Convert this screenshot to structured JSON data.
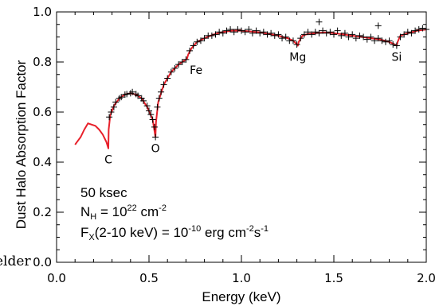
{
  "chart_data": {
    "type": "line",
    "title": "",
    "xlabel": "Energy (keV)",
    "ylabel": "Dust Halo Absorption Factor",
    "xlim": [
      0,
      2
    ],
    "ylim": [
      0,
      1
    ],
    "x_ticks": [
      0,
      0.5,
      1,
      1.5,
      2
    ],
    "y_ticks": [
      0,
      0.2,
      0.4,
      0.6,
      0.8,
      1
    ],
    "x_tick_labels": [
      "0.0",
      "0.5",
      "1.0",
      "1.5",
      "2.0"
    ],
    "y_tick_labels": [
      "0.0",
      "0.2",
      "0.4",
      "0.6",
      "0.8",
      "1.0"
    ],
    "grid": false,
    "colors": {
      "model": "#e8202a",
      "data": "#000000",
      "axes": "#000000"
    },
    "series": [
      {
        "style": "line",
        "points": [
          [
            0.1,
            0.47
          ],
          [
            0.11,
            0.48
          ],
          [
            0.13,
            0.5
          ],
          [
            0.15,
            0.53
          ],
          [
            0.17,
            0.555
          ],
          [
            0.19,
            0.55
          ],
          [
            0.21,
            0.545
          ],
          [
            0.23,
            0.53
          ],
          [
            0.25,
            0.51
          ],
          [
            0.27,
            0.48
          ],
          [
            0.28,
            0.455
          ],
          [
            0.282,
            0.53
          ],
          [
            0.29,
            0.585
          ],
          [
            0.31,
            0.625
          ],
          [
            0.34,
            0.655
          ],
          [
            0.37,
            0.67
          ],
          [
            0.4,
            0.675
          ],
          [
            0.43,
            0.67
          ],
          [
            0.46,
            0.655
          ],
          [
            0.49,
            0.62
          ],
          [
            0.52,
            0.57
          ],
          [
            0.535,
            0.5
          ],
          [
            0.538,
            0.56
          ],
          [
            0.55,
            0.64
          ],
          [
            0.58,
            0.71
          ],
          [
            0.62,
            0.76
          ],
          [
            0.66,
            0.79
          ],
          [
            0.69,
            0.805
          ],
          [
            0.705,
            0.812
          ],
          [
            0.712,
            0.83
          ],
          [
            0.73,
            0.855
          ],
          [
            0.76,
            0.88
          ],
          [
            0.8,
            0.895
          ],
          [
            0.85,
            0.91
          ],
          [
            0.9,
            0.92
          ],
          [
            0.95,
            0.925
          ],
          [
            1.0,
            0.925
          ],
          [
            1.05,
            0.922
          ],
          [
            1.1,
            0.918
          ],
          [
            1.15,
            0.912
          ],
          [
            1.2,
            0.905
          ],
          [
            1.25,
            0.895
          ],
          [
            1.28,
            0.885
          ],
          [
            1.3,
            0.87
          ],
          [
            1.305,
            0.865
          ],
          [
            1.31,
            0.88
          ],
          [
            1.33,
            0.905
          ],
          [
            1.36,
            0.912
          ],
          [
            1.4,
            0.915
          ],
          [
            1.45,
            0.918
          ],
          [
            1.5,
            0.915
          ],
          [
            1.55,
            0.91
          ],
          [
            1.6,
            0.905
          ],
          [
            1.65,
            0.9
          ],
          [
            1.7,
            0.895
          ],
          [
            1.75,
            0.89
          ],
          [
            1.8,
            0.88
          ],
          [
            1.83,
            0.87
          ],
          [
            1.84,
            0.865
          ],
          [
            1.845,
            0.88
          ],
          [
            1.86,
            0.905
          ],
          [
            1.9,
            0.915
          ],
          [
            1.95,
            0.925
          ],
          [
            2.0,
            0.93
          ]
        ]
      },
      {
        "style": "crosses",
        "points": [
          [
            0.285,
            0.58
          ],
          [
            0.295,
            0.6
          ],
          [
            0.31,
            0.62
          ],
          [
            0.32,
            0.64
          ],
          [
            0.34,
            0.655
          ],
          [
            0.35,
            0.66
          ],
          [
            0.37,
            0.67
          ],
          [
            0.38,
            0.672
          ],
          [
            0.4,
            0.675
          ],
          [
            0.41,
            0.68
          ],
          [
            0.43,
            0.672
          ],
          [
            0.44,
            0.665
          ],
          [
            0.46,
            0.655
          ],
          [
            0.47,
            0.645
          ],
          [
            0.49,
            0.625
          ],
          [
            0.5,
            0.605
          ],
          [
            0.51,
            0.59
          ],
          [
            0.52,
            0.57
          ],
          [
            0.53,
            0.54
          ],
          [
            0.535,
            0.5
          ],
          [
            0.545,
            0.62
          ],
          [
            0.555,
            0.655
          ],
          [
            0.565,
            0.68
          ],
          [
            0.58,
            0.71
          ],
          [
            0.6,
            0.735
          ],
          [
            0.62,
            0.76
          ],
          [
            0.64,
            0.775
          ],
          [
            0.66,
            0.79
          ],
          [
            0.68,
            0.8
          ],
          [
            0.7,
            0.81
          ],
          [
            0.72,
            0.845
          ],
          [
            0.74,
            0.865
          ],
          [
            0.76,
            0.88
          ],
          [
            0.78,
            0.885
          ],
          [
            0.8,
            0.895
          ],
          [
            0.82,
            0.905
          ],
          [
            0.84,
            0.905
          ],
          [
            0.86,
            0.91
          ],
          [
            0.88,
            0.92
          ],
          [
            0.9,
            0.915
          ],
          [
            0.92,
            0.925
          ],
          [
            0.94,
            0.93
          ],
          [
            0.96,
            0.92
          ],
          [
            0.98,
            0.93
          ],
          [
            1.0,
            0.925
          ],
          [
            1.02,
            0.92
          ],
          [
            1.04,
            0.93
          ],
          [
            1.06,
            0.915
          ],
          [
            1.08,
            0.925
          ],
          [
            1.1,
            0.915
          ],
          [
            1.12,
            0.92
          ],
          [
            1.14,
            0.91
          ],
          [
            1.16,
            0.915
          ],
          [
            1.18,
            0.905
          ],
          [
            1.2,
            0.91
          ],
          [
            1.22,
            0.895
          ],
          [
            1.24,
            0.9
          ],
          [
            1.26,
            0.885
          ],
          [
            1.28,
            0.885
          ],
          [
            1.3,
            0.87
          ],
          [
            1.32,
            0.895
          ],
          [
            1.34,
            0.91
          ],
          [
            1.36,
            0.92
          ],
          [
            1.38,
            0.91
          ],
          [
            1.4,
            0.92
          ],
          [
            1.42,
            0.915
          ],
          [
            1.44,
            0.925
          ],
          [
            1.46,
            0.915
          ],
          [
            1.48,
            0.92
          ],
          [
            1.5,
            0.91
          ],
          [
            1.52,
            0.925
          ],
          [
            1.54,
            0.905
          ],
          [
            1.56,
            0.915
          ],
          [
            1.58,
            0.9
          ],
          [
            1.6,
            0.91
          ],
          [
            1.62,
            0.895
          ],
          [
            1.64,
            0.905
          ],
          [
            1.66,
            0.9
          ],
          [
            1.68,
            0.89
          ],
          [
            1.7,
            0.9
          ],
          [
            1.72,
            0.885
          ],
          [
            1.74,
            0.895
          ],
          [
            1.76,
            0.885
          ],
          [
            1.78,
            0.88
          ],
          [
            1.8,
            0.885
          ],
          [
            1.82,
            0.87
          ],
          [
            1.84,
            0.865
          ],
          [
            1.86,
            0.9
          ],
          [
            1.88,
            0.91
          ],
          [
            1.9,
            0.92
          ],
          [
            1.92,
            0.915
          ],
          [
            1.94,
            0.925
          ],
          [
            1.96,
            0.93
          ],
          [
            1.98,
            0.935
          ],
          [
            2.0,
            0.93
          ],
          [
            1.42,
            0.96
          ],
          [
            1.74,
            0.945
          ]
        ]
      }
    ],
    "annotations": [
      {
        "text": "C",
        "x": 0.28,
        "y": 0.455
      },
      {
        "text": "O",
        "x": 0.535,
        "y": 0.5
      },
      {
        "text": "Fe",
        "x": 0.712,
        "y": 0.812
      },
      {
        "text": "Mg",
        "x": 1.305,
        "y": 0.865
      },
      {
        "text": "Si",
        "x": 1.84,
        "y": 0.865
      }
    ]
  },
  "info": {
    "exposure": "50 ksec",
    "nh": {
      "symbol": "N",
      "sub": "H",
      "eq": " = 10",
      "exp": "22",
      "unit": " cm",
      "unit_exp": "-2"
    },
    "flux": {
      "symbol": "F",
      "sub": "X",
      "band": "(2-10 keV) = 10",
      "exp": "-10",
      "unit": " erg cm",
      "unit_exp": "-2",
      "unit2": "s",
      "unit2_exp": "-1"
    }
  },
  "stray_text": "elder"
}
